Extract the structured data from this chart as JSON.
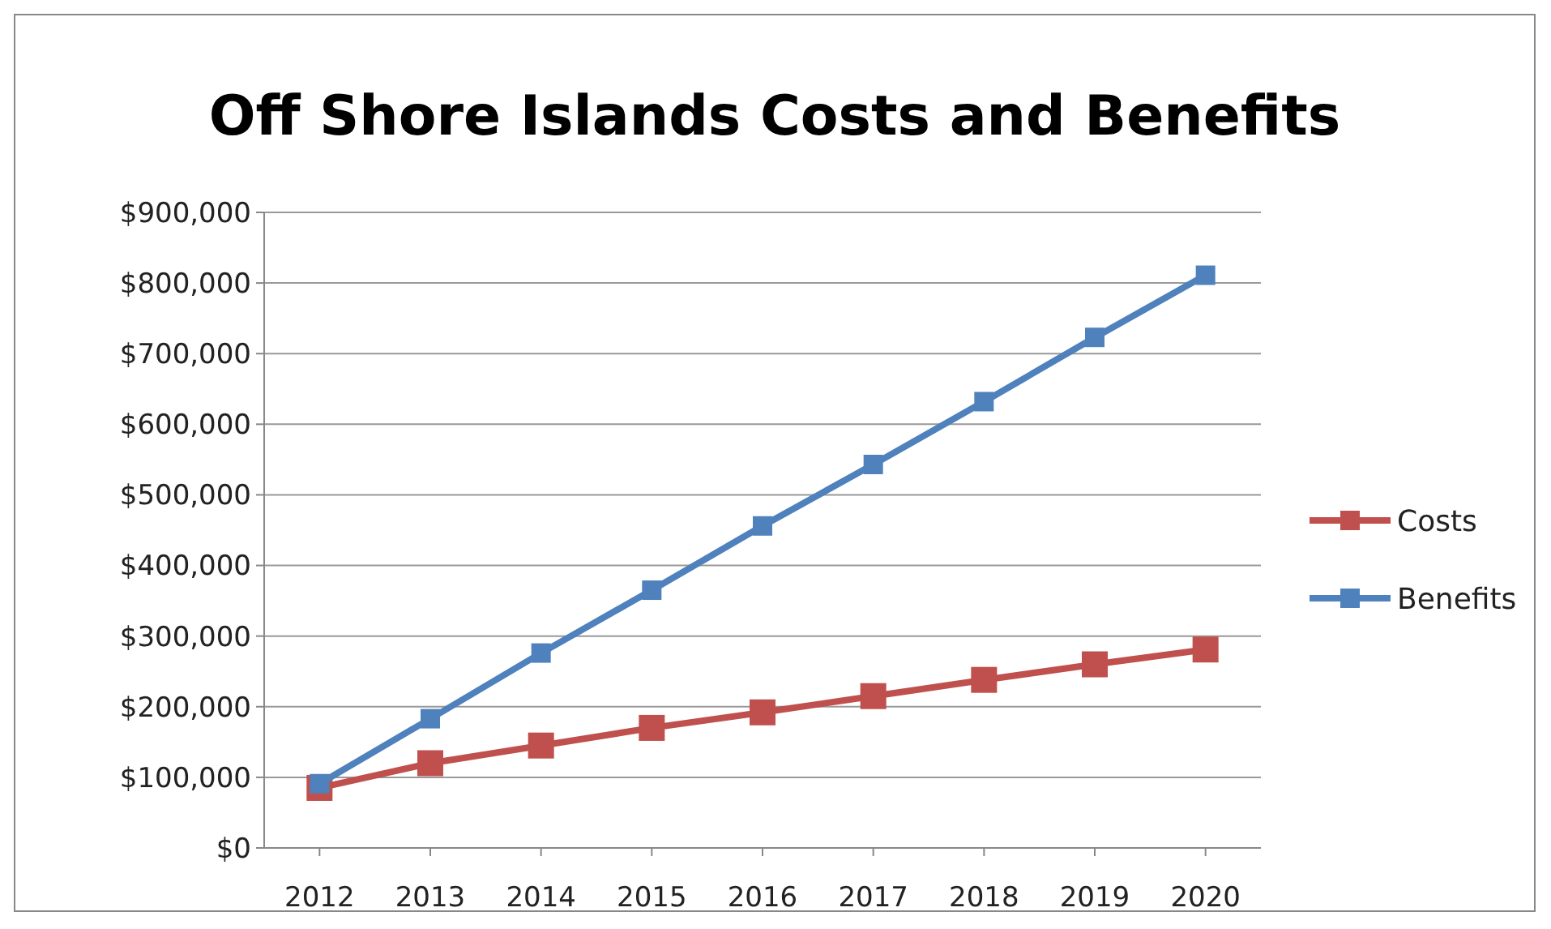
{
  "chart_data": {
    "type": "line",
    "title": "Off Shore Islands Costs and Benefits",
    "categories": [
      "2012",
      "2013",
      "2014",
      "2015",
      "2016",
      "2017",
      "2018",
      "2019",
      "2020"
    ],
    "series": [
      {
        "name": "Costs",
        "color": "#c0504d",
        "values": [
          85000,
          120000,
          145000,
          170000,
          192000,
          215000,
          238000,
          260000,
          281000
        ]
      },
      {
        "name": "Benefits",
        "color": "#4f81bd",
        "values": [
          91000,
          183000,
          276000,
          365000,
          456000,
          543000,
          632000,
          723000,
          811000
        ]
      }
    ],
    "ylim": [
      0,
      900000
    ],
    "yticks": [
      {
        "value": 0,
        "label": "$0"
      },
      {
        "value": 100000,
        "label": "$100,000"
      },
      {
        "value": 200000,
        "label": "$200,000"
      },
      {
        "value": 300000,
        "label": "$300,000"
      },
      {
        "value": 400000,
        "label": "$400,000"
      },
      {
        "value": 500000,
        "label": "$500,000"
      },
      {
        "value": 600000,
        "label": "$600,000"
      },
      {
        "value": 700000,
        "label": "$700,000"
      },
      {
        "value": 800000,
        "label": "$800,000"
      },
      {
        "value": 900000,
        "label": "$900,000"
      }
    ],
    "grid": "y",
    "legend": "right",
    "marker": "square",
    "line_style": "solid"
  }
}
